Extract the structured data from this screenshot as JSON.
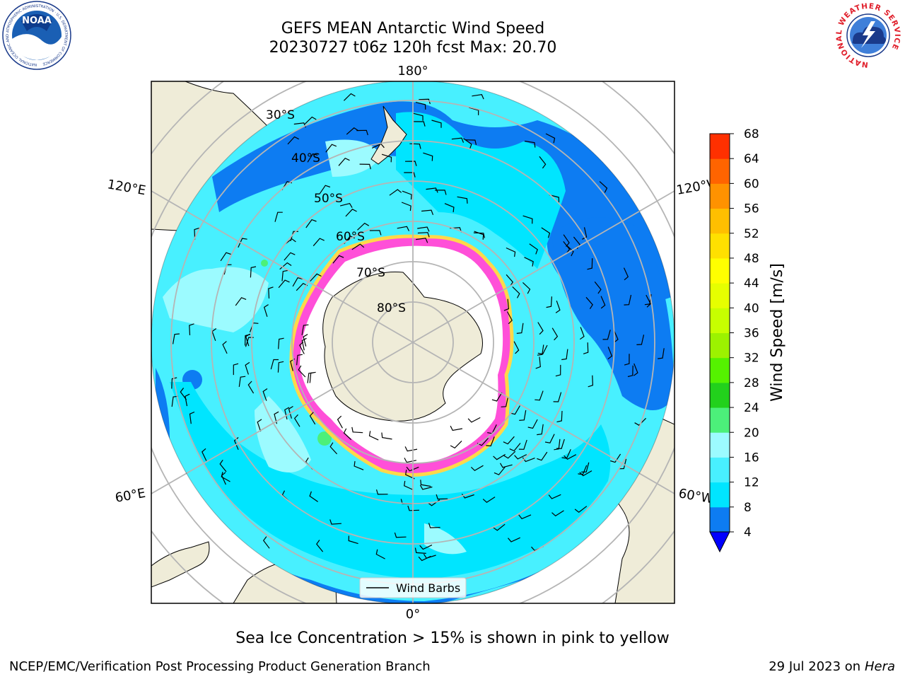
{
  "header": {
    "title_line1": "GEFS MEAN Antarctic Wind Speed",
    "title_line2": "20230727 t06z 120h fcst   Max: 20.70"
  },
  "logos": {
    "left": "NOAA",
    "left_ring": "NATIONAL OCEANIC AND ATMOSPHERIC ADMINISTRATION · U.S. DEPARTMENT OF COMMERCE",
    "right_ring": "NATIONAL WEATHER SERVICE"
  },
  "map": {
    "longitude_labels": {
      "top": "180°",
      "upper_left": "120°E",
      "upper_right": "120°W",
      "lower_left": "60°E",
      "lower_right": "60°W",
      "bottom": "0°"
    },
    "latitude_labels": [
      "30°S",
      "40°S",
      "50°S",
      "60°S",
      "70°S",
      "80°S"
    ],
    "legend_label": "Wind Barbs",
    "colors": {
      "land": "#efecd8",
      "ocean_4_8": "#0d7cf2",
      "ocean_8_12": "#00e5ff",
      "ocean_12_16": "#48f0ff",
      "ocean_16_20": "#9cfbff",
      "ice_edge_pink": "#ff4fd8",
      "ice_edge_yellow": "#ffd84a"
    }
  },
  "colorbar": {
    "label": "Wind Speed [m/s]",
    "ticks": [
      "4",
      "8",
      "12",
      "16",
      "20",
      "24",
      "28",
      "32",
      "36",
      "40",
      "44",
      "48",
      "52",
      "56",
      "60",
      "64",
      "68"
    ],
    "colors": [
      "#0d7cf2",
      "#00e5ff",
      "#48f0ff",
      "#9cfbff",
      "#4cf07a",
      "#22d11c",
      "#55f200",
      "#9cf200",
      "#c7ff00",
      "#e6ff00",
      "#ffff00",
      "#ffe000",
      "#ffbf00",
      "#ff9200",
      "#ff6400",
      "#ff3000"
    ],
    "under_color": "#0000ff"
  },
  "caption": "Sea Ice Concentration > 15% is shown in pink to yellow",
  "footer": {
    "left": "NCEP/EMC/Verification Post Processing Product Generation Branch",
    "right_prefix": "29 Jul 2023 on ",
    "right_machine": "Hera"
  }
}
